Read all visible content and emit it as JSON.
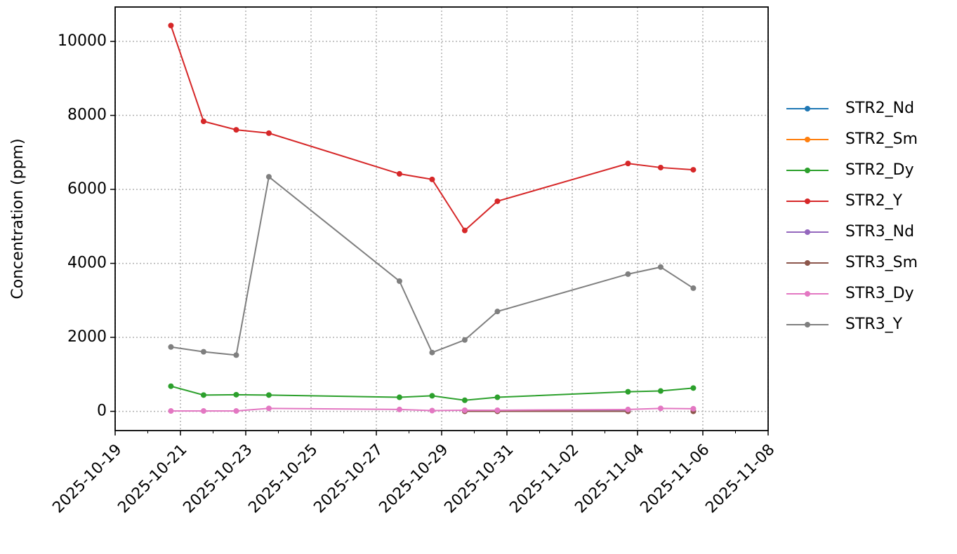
{
  "chart_data": {
    "type": "line",
    "ylabel": "Concentration (ppm)",
    "x": [
      "2025-10-20T17:00",
      "2025-10-21T17:00",
      "2025-10-22T17:00",
      "2025-10-23T17:00",
      "2025-10-27T17:00",
      "2025-10-28T17:00",
      "2025-10-29T17:00",
      "2025-10-30T17:00",
      "2025-11-03T17:00",
      "2025-11-04T17:00",
      "2025-11-05T17:00"
    ],
    "series": [
      {
        "name": "STR2_Nd",
        "color": "#1f77b4",
        "values": [
          null,
          null,
          null,
          null,
          null,
          null,
          5,
          5,
          5,
          null,
          5
        ]
      },
      {
        "name": "STR2_Sm",
        "color": "#ff7f0e",
        "values": [
          null,
          null,
          null,
          null,
          null,
          null,
          2,
          2,
          2,
          null,
          2
        ]
      },
      {
        "name": "STR2_Dy",
        "color": "#2ca02c",
        "values": [
          680,
          440,
          450,
          440,
          380,
          420,
          300,
          380,
          530,
          550,
          630
        ]
      },
      {
        "name": "STR2_Y",
        "color": "#d62728",
        "values": [
          10430,
          7840,
          7610,
          7520,
          6420,
          6270,
          4890,
          5680,
          6700,
          6590,
          6530
        ]
      },
      {
        "name": "STR3_Nd",
        "color": "#9467bd",
        "values": [
          null,
          null,
          null,
          null,
          null,
          null,
          5,
          5,
          5,
          null,
          5
        ]
      },
      {
        "name": "STR3_Sm",
        "color": "#8c564b",
        "values": [
          null,
          null,
          null,
          null,
          null,
          null,
          2,
          2,
          2,
          null,
          2
        ]
      },
      {
        "name": "STR3_Dy",
        "color": "#e377c2",
        "values": [
          10,
          10,
          10,
          80,
          50,
          20,
          30,
          30,
          50,
          80,
          70
        ]
      },
      {
        "name": "STR3_Y",
        "color": "#7f7f7f",
        "values": [
          1740,
          1610,
          1520,
          6340,
          3520,
          1590,
          1930,
          2700,
          3710,
          3900,
          3330
        ]
      }
    ],
    "xlim": [
      "2025-10-19",
      "2025-11-08"
    ],
    "xticks": [
      "2025-10-19",
      "2025-10-21",
      "2025-10-23",
      "2025-10-25",
      "2025-10-27",
      "2025-10-29",
      "2025-10-31",
      "2025-11-02",
      "2025-11-04",
      "2025-11-06",
      "2025-11-08"
    ],
    "ylim": [
      -520,
      10930
    ],
    "yticks": [
      0,
      2000,
      4000,
      6000,
      8000,
      10000
    ],
    "grid": true,
    "legend": "outside right"
  }
}
